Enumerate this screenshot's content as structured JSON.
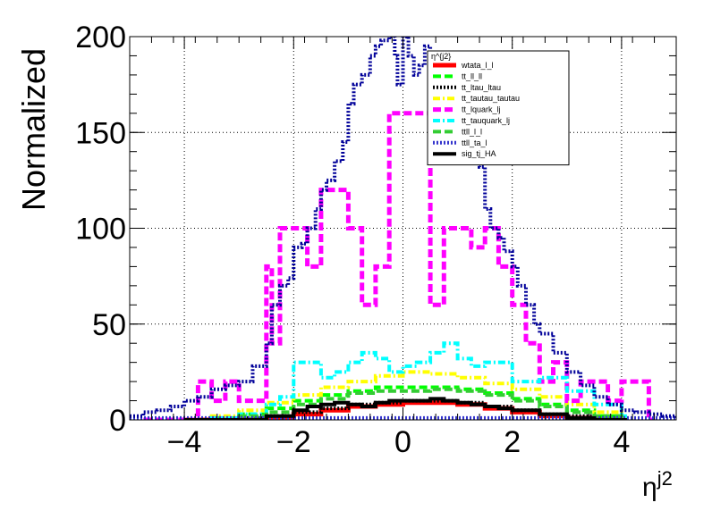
{
  "chart_data": {
    "type": "line",
    "title": "",
    "xlabel": "η",
    "xlabel_sup": "j2",
    "ylabel": "Normalized",
    "xlim": [
      -5,
      5
    ],
    "ylim": [
      0,
      200
    ],
    "xticks": [
      -4,
      -2,
      0,
      2,
      4
    ],
    "xtick_labels": [
      "−4",
      "−2",
      "0",
      "2",
      "4"
    ],
    "yticks": [
      0,
      50,
      100,
      150,
      200
    ],
    "ytick_labels": [
      "0",
      "50",
      "100",
      "150",
      "200"
    ],
    "grid": true,
    "legend_title": "η^{j2}",
    "legend_position": "top-right",
    "series": [
      {
        "name": "wtata_l_l",
        "color": "#ff0000",
        "style": "solid",
        "width": 5,
        "x": [
          -4,
          -3,
          -2.5,
          -2,
          -1.5,
          -1,
          -0.5,
          0,
          0.5,
          1,
          1.5,
          2,
          2.5,
          3,
          3.5,
          4
        ],
        "y": [
          0,
          0,
          1,
          3,
          5,
          7,
          8,
          9,
          9,
          8,
          6,
          4,
          2,
          1,
          0,
          0
        ]
      },
      {
        "name": "tt_ll_ll",
        "color": "#00ff00",
        "style": "dashed",
        "width": 4,
        "x": [
          -4,
          -3.5,
          -3,
          -2.5,
          -2,
          -1.5,
          -1,
          -0.5,
          0,
          0.5,
          1,
          1.5,
          2,
          2.5,
          3,
          3.5,
          4
        ],
        "y": [
          0,
          1,
          3,
          6,
          10,
          13,
          15,
          17,
          17,
          17,
          16,
          14,
          11,
          8,
          5,
          2,
          1
        ]
      },
      {
        "name": "tt_ltau_ltau",
        "color": "#000000",
        "style": "dotted",
        "width": 4,
        "x": [
          -4,
          -3,
          -2.5,
          -2,
          -1.5,
          -1,
          -0.5,
          0,
          0.5,
          1,
          1.5,
          2,
          2.5,
          3,
          3.5,
          4
        ],
        "y": [
          0,
          1,
          2,
          4,
          6,
          8,
          9,
          10,
          10,
          9,
          7,
          5,
          3,
          2,
          1,
          0
        ]
      },
      {
        "name": "tt_tautau_tautau",
        "color": "#ffff00",
        "style": "dashdot",
        "width": 4,
        "x": [
          -4,
          -3.5,
          -3,
          -2.5,
          -2,
          -1.5,
          -1,
          -0.5,
          0,
          0.5,
          1,
          1.5,
          2,
          2.5,
          3,
          3.5,
          4
        ],
        "y": [
          0,
          2,
          5,
          9,
          13,
          17,
          20,
          23,
          25,
          24,
          22,
          19,
          16,
          12,
          8,
          4,
          1
        ]
      },
      {
        "name": "tt_lquark_lj",
        "color": "#ff00ff",
        "style": "dashed",
        "width": 5,
        "x": [
          -4.75,
          -4.25,
          -3.75,
          -3.5,
          -3.25,
          -3,
          -2.75,
          -2.5,
          -2.4,
          -2.25,
          -2,
          -1.75,
          -1.5,
          -1.25,
          -1,
          -0.75,
          -0.5,
          -0.25,
          0,
          0.25,
          0.5,
          0.75,
          1,
          1.25,
          1.5,
          1.75,
          2,
          2.25,
          2.5,
          2.75,
          3,
          3.25,
          3.5,
          3.75,
          4,
          4.5
        ],
        "y": [
          0,
          0,
          20,
          10,
          20,
          10,
          10,
          80,
          40,
          100,
          100,
          80,
          120,
          120,
          100,
          60,
          80,
          160,
          160,
          160,
          60,
          100,
          100,
          90,
          100,
          80,
          60,
          40,
          20,
          30,
          10,
          20,
          20,
          10,
          20,
          0
        ]
      },
      {
        "name": "tt_tauquark_lj",
        "color": "#00ffff",
        "style": "dashdot",
        "width": 4,
        "x": [
          -4,
          -3.5,
          -3,
          -2.5,
          -2.25,
          -2,
          -1.5,
          -1.25,
          -1,
          -0.75,
          -0.5,
          -0.25,
          0,
          0.25,
          0.5,
          0.75,
          1,
          1.25,
          1.5,
          2,
          2.5,
          3,
          3.5,
          4
        ],
        "y": [
          0,
          1,
          3,
          8,
          12,
          30,
          22,
          25,
          30,
          35,
          32,
          25,
          28,
          30,
          35,
          40,
          32,
          28,
          30,
          20,
          22,
          15,
          8,
          2
        ]
      },
      {
        "name": "ttll_l_l",
        "color": "#33cc33",
        "style": "dashed",
        "width": 4,
        "x": [
          -4,
          -3,
          -2.5,
          -2,
          -1.5,
          -1,
          -0.5,
          0,
          0.5,
          1,
          1.5,
          2,
          2.5,
          3,
          3.5,
          4
        ],
        "y": [
          0,
          2,
          4,
          8,
          11,
          14,
          15,
          15,
          16,
          15,
          13,
          10,
          7,
          4,
          2,
          0
        ]
      },
      {
        "name": "ttll_ta_l",
        "color": "#3333cc",
        "style": "dotted",
        "width": 4,
        "x": [
          -5,
          -4,
          -3,
          -2,
          -1,
          0,
          1,
          2,
          3,
          4,
          5
        ],
        "y": [
          1,
          1,
          1,
          1,
          1,
          1,
          1,
          1,
          1,
          1,
          1
        ]
      },
      {
        "name": "sig_tj_HA",
        "color": "#000000",
        "style": "solid",
        "width": 4,
        "x": [
          -4,
          -3.5,
          -3,
          -2.5,
          -2,
          -1.75,
          -1.5,
          -1.25,
          -1,
          -0.75,
          -0.5,
          -0.25,
          0,
          0.25,
          0.5,
          0.75,
          1,
          1.25,
          1.5,
          1.75,
          2,
          2.5,
          3,
          3.5,
          4
        ],
        "y": [
          0,
          0,
          0,
          2,
          5,
          7,
          8,
          9,
          8,
          7,
          9,
          10,
          10,
          10,
          11,
          10,
          9,
          8,
          7,
          6,
          5,
          3,
          1,
          0,
          0
        ]
      },
      {
        "name": "",
        "color": "#000099",
        "style": "dotted",
        "width": 4,
        "x": [
          -5,
          -4.75,
          -4.5,
          -4.25,
          -4,
          -3.75,
          -3.5,
          -3.25,
          -3,
          -2.75,
          -2.5,
          -2.4,
          -2.25,
          -2.1,
          -2,
          -1.85,
          -1.75,
          -1.6,
          -1.5,
          -1.4,
          -1.25,
          -1.1,
          -1,
          -0.9,
          -0.75,
          -0.6,
          -0.5,
          -0.4,
          -0.25,
          -0.15,
          -0.1,
          0,
          0.1,
          0.2,
          0.3,
          0.4,
          0.5,
          0.6,
          0.75,
          0.9,
          1,
          1.1,
          1.25,
          1.4,
          1.5,
          1.6,
          1.75,
          1.85,
          2,
          2.1,
          2.25,
          2.4,
          2.5,
          2.75,
          3,
          3.25,
          3.5,
          3.75,
          4,
          4.25,
          4.5,
          4.75,
          5
        ],
        "y": [
          2,
          4,
          5,
          7,
          10,
          12,
          16,
          18,
          20,
          28,
          40,
          60,
          70,
          74,
          90,
          92,
          100,
          110,
          120,
          125,
          135,
          145,
          165,
          175,
          180,
          190,
          195,
          198,
          200,
          190,
          175,
          200,
          190,
          180,
          185,
          195,
          180,
          175,
          170,
          165,
          160,
          150,
          140,
          132,
          110,
          100,
          95,
          88,
          80,
          70,
          60,
          50,
          45,
          35,
          25,
          18,
          12,
          8,
          5,
          4,
          3,
          2,
          1
        ]
      }
    ]
  }
}
